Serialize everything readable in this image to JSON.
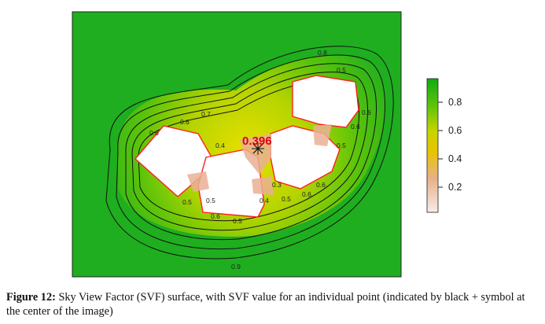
{
  "figure": {
    "point_value": "0.396",
    "contour_labels": [
      "0.8",
      "0.7",
      "0.6",
      "0.6",
      "0.5",
      "0.4",
      "0.3",
      "0.4",
      "0.5",
      "0.6",
      "0.5",
      "0.6",
      "0.5",
      "0.6",
      "0.5",
      "0.6",
      "0.9",
      "0.6",
      "0.5"
    ],
    "legend": {
      "ticks": [
        "0.8",
        "0.6",
        "0.4",
        "0.2"
      ],
      "colors": [
        "#14b014",
        "#4cc00c",
        "#b8d000",
        "#e8c800",
        "#e8b090",
        "#f4e4e0"
      ]
    },
    "colors": {
      "background_green": "#1fae1f",
      "building_fill": "#ffffff",
      "building_outline": "#ff1a1a",
      "marker": "#111111"
    }
  },
  "caption": {
    "label": "Figure 12:",
    "text": " Sky View Factor (SVF) surface, with SVF value for an individual point (indicated by black + symbol at the center of the image)"
  }
}
